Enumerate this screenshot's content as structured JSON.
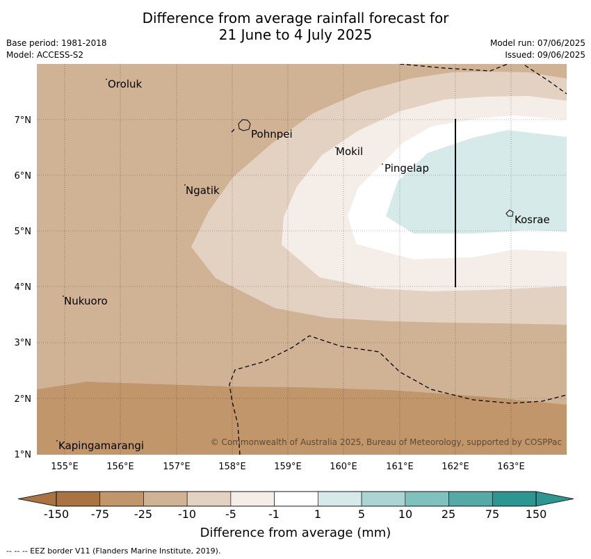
{
  "title": {
    "line1": "Difference from average rainfall forecast for",
    "line2": "21 June to 4 July 2025"
  },
  "meta": {
    "base_period": "Base period: 1981-2018",
    "model": "Model: ACCESS-S2",
    "model_run": "Model run: 07/06/2025",
    "issued": "Issued: 09/06/2025"
  },
  "map": {
    "lat_labels": [
      "1°N",
      "2°N",
      "3°N",
      "4°N",
      "5°N",
      "6°N",
      "7°N"
    ],
    "lon_labels": [
      "155°E",
      "156°E",
      "157°E",
      "158°E",
      "159°E",
      "160°E",
      "161°E",
      "162°E",
      "163°E"
    ],
    "places": {
      "oroluk": "Oroluk",
      "pohnpei": "Pohnpei",
      "mokil": "Mokil",
      "pingelap": "Pingelap",
      "ngatik": "Ngatik",
      "kosrae": "Kosrae",
      "nukuoro": "Nukuoro",
      "kapingamarangi": "Kapingamarangi"
    },
    "copyright": "© Commonwealth of Australia 2025, Bureau of Meteorology, supported by COSPPac",
    "gridlines": true
  },
  "colorbar": {
    "title": "Difference from average (mm)",
    "ticks": [
      "-150",
      "-75",
      "-25",
      "-10",
      "-5",
      "-1",
      "1",
      "5",
      "10",
      "25",
      "75",
      "150"
    ],
    "colors": [
      "#a97441",
      "#c0966a",
      "#d0b394",
      "#e3d2c1",
      "#f4ede8",
      "#ffffff",
      "#d5eae9",
      "#aad5d3",
      "#80c0bd",
      "#55aaa7",
      "#2d9592"
    ],
    "extend_low": "#a97441",
    "extend_high": "#2d9592"
  },
  "footnote": "--  --  -- EEZ border V11 (Flanders Marine Institute, 2019)."
}
